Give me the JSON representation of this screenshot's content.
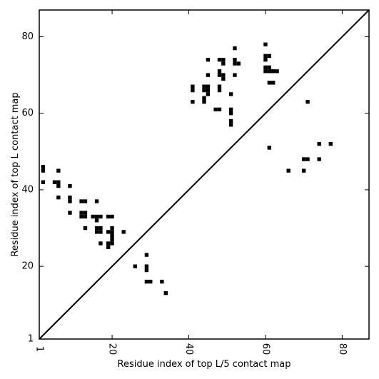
{
  "chart_data": {
    "type": "scatter",
    "xlabel": "Residue index of top L/5 contact map",
    "ylabel": "Residue index of top L contact map",
    "xlim": [
      1,
      87
    ],
    "ylim": [
      1,
      87
    ],
    "xticks": [
      1,
      20,
      40,
      60,
      80
    ],
    "yticks": [
      1,
      20,
      40,
      60,
      80
    ],
    "diagonal": true,
    "marker": "square",
    "color": "#000000",
    "upper_points": [
      [
        45,
        74
      ],
      [
        48,
        74
      ],
      [
        49,
        74
      ],
      [
        49,
        73
      ],
      [
        52,
        77
      ],
      [
        52,
        74
      ],
      [
        52,
        73
      ],
      [
        53,
        73
      ],
      [
        60,
        78
      ],
      [
        60,
        75
      ],
      [
        61,
        75
      ],
      [
        60,
        74
      ],
      [
        60,
        72
      ],
      [
        61,
        72
      ],
      [
        60,
        71
      ],
      [
        61,
        71
      ],
      [
        62,
        71
      ],
      [
        63,
        71
      ],
      [
        61,
        68
      ],
      [
        62,
        68
      ],
      [
        48,
        71
      ],
      [
        48,
        70
      ],
      [
        49,
        70
      ],
      [
        49,
        69
      ],
      [
        45,
        70
      ],
      [
        52,
        70
      ],
      [
        41,
        67
      ],
      [
        41,
        66
      ],
      [
        44,
        67
      ],
      [
        45,
        67
      ],
      [
        44,
        66
      ],
      [
        45,
        66
      ],
      [
        48,
        67
      ],
      [
        48,
        66
      ],
      [
        45,
        65
      ],
      [
        51,
        65
      ],
      [
        44,
        64
      ],
      [
        44,
        63
      ],
      [
        41,
        63
      ],
      [
        71,
        63
      ],
      [
        47,
        61
      ],
      [
        48,
        61
      ],
      [
        51,
        61
      ],
      [
        51,
        60
      ],
      [
        51,
        58
      ],
      [
        51,
        57
      ]
    ],
    "lower_points": [
      [
        2,
        46
      ],
      [
        2,
        45
      ],
      [
        6,
        45
      ],
      [
        2,
        42
      ],
      [
        5,
        42
      ],
      [
        6,
        42
      ],
      [
        6,
        41
      ],
      [
        9,
        41
      ],
      [
        6,
        38
      ],
      [
        9,
        38
      ],
      [
        9,
        37
      ],
      [
        12,
        37
      ],
      [
        13,
        37
      ],
      [
        16,
        37
      ],
      [
        9,
        34
      ],
      [
        12,
        34
      ],
      [
        13,
        34
      ],
      [
        12,
        33
      ],
      [
        13,
        33
      ],
      [
        15,
        33
      ],
      [
        16,
        33
      ],
      [
        17,
        33
      ],
      [
        19,
        33
      ],
      [
        20,
        33
      ],
      [
        16,
        32
      ],
      [
        13,
        30
      ],
      [
        16,
        30
      ],
      [
        17,
        30
      ],
      [
        20,
        30
      ],
      [
        16,
        29
      ],
      [
        17,
        29
      ],
      [
        19,
        29
      ],
      [
        20,
        29
      ],
      [
        23,
        29
      ],
      [
        20,
        28
      ],
      [
        20,
        27
      ],
      [
        17,
        26
      ],
      [
        19,
        26
      ],
      [
        20,
        26
      ],
      [
        19,
        25
      ],
      [
        29,
        23
      ],
      [
        26,
        20
      ],
      [
        29,
        20
      ],
      [
        29,
        19
      ],
      [
        29,
        16
      ],
      [
        30,
        16
      ],
      [
        33,
        16
      ],
      [
        34,
        13
      ],
      [
        61,
        51
      ],
      [
        74,
        52
      ],
      [
        77,
        52
      ],
      [
        70,
        48
      ],
      [
        71,
        48
      ],
      [
        74,
        48
      ],
      [
        66,
        45
      ],
      [
        70,
        45
      ]
    ]
  }
}
